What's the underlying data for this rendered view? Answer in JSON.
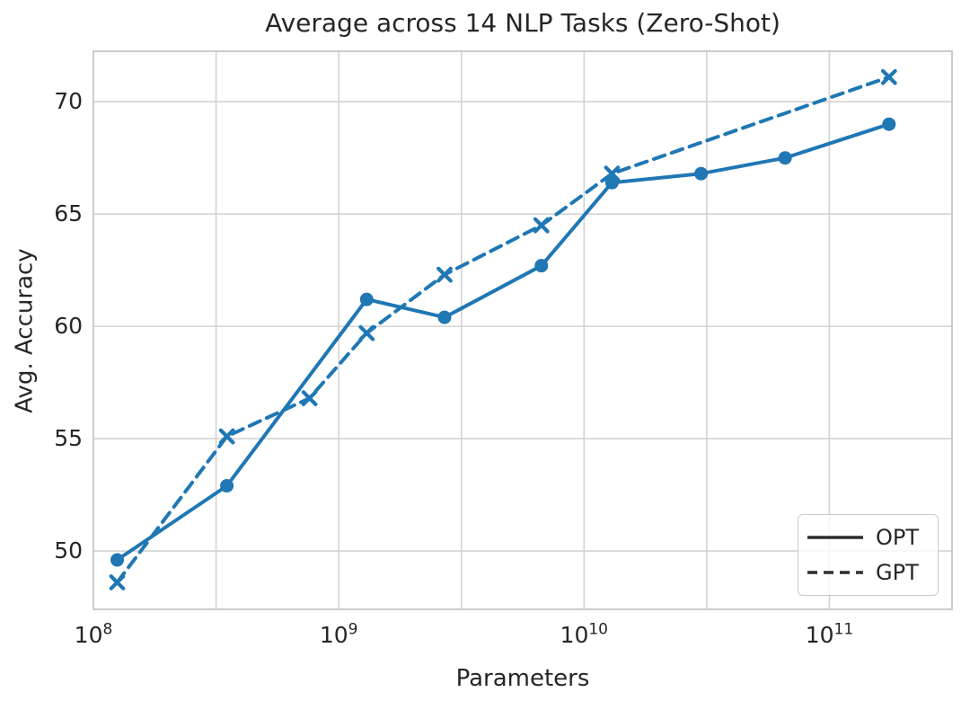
{
  "chart_data": {
    "type": "line",
    "title": "Average across 14 NLP Tasks (Zero-Shot)",
    "xlabel": "Parameters",
    "ylabel": "Avg. Accuracy",
    "x_scale": "log10",
    "xlim_log": [
      8,
      11.5
    ],
    "ylim": [
      47.4,
      72.25
    ],
    "grid": true,
    "x_gridlines_log": [
      8.5,
      9,
      9.5,
      10,
      10.5,
      11
    ],
    "yticks": [
      50,
      55,
      60,
      65,
      70
    ],
    "xticks": [
      {
        "base": "10",
        "exp": "8",
        "log": 8
      },
      {
        "base": "10",
        "exp": "9",
        "log": 9
      },
      {
        "base": "10",
        "exp": "10",
        "log": 10
      },
      {
        "base": "10",
        "exp": "11",
        "log": 11
      }
    ],
    "legend_position": "lower right",
    "series": [
      {
        "name": "OPT",
        "line_style": "solid",
        "marker": "circle",
        "color": "#1f77b4",
        "x": [
          125000000.0,
          350000000.0,
          1300000000.0,
          2700000000.0,
          6700000000.0,
          13000000000.0,
          30000000000.0,
          66000000000.0,
          175000000000.0
        ],
        "values": [
          49.6,
          52.9,
          61.2,
          60.4,
          62.7,
          66.4,
          66.8,
          67.5,
          69.0
        ]
      },
      {
        "name": "GPT",
        "line_style": "dashed",
        "marker": "x",
        "color": "#1f77b4",
        "x": [
          125000000.0,
          350000000.0,
          760000000.0,
          1300000000.0,
          2700000000.0,
          6700000000.0,
          13000000000.0,
          175000000000.0
        ],
        "values": [
          48.6,
          55.1,
          56.8,
          59.7,
          62.3,
          64.5,
          66.8,
          71.1
        ]
      }
    ]
  },
  "legend": {
    "entries": [
      {
        "label": "OPT",
        "style": "solid"
      },
      {
        "label": "GPT",
        "style": "dashed"
      }
    ]
  },
  "style": {
    "line_color": "#1f77b4",
    "text_color": "#262626",
    "grid_color": "#d3d3d3",
    "spine_color": "#c6c6c6",
    "legend_sample_color": "#2e2e2e"
  }
}
